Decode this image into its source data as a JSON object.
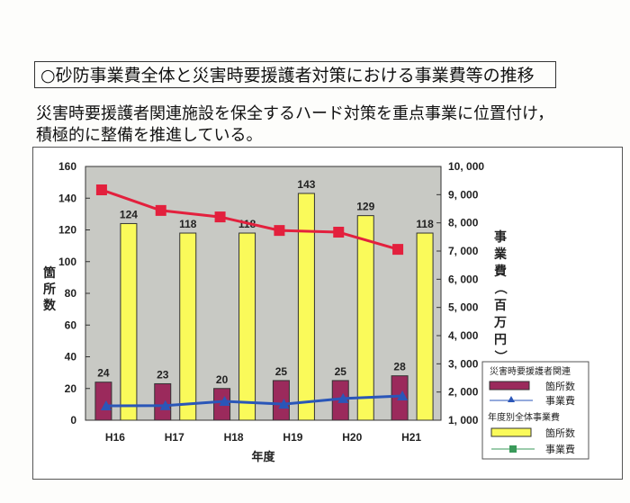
{
  "header": {
    "title": "○砂防事業費全体と災害時要援護者対策における事業費等の推移",
    "subtitle_line1": "災害時要援護者関連施設を保全するハード対策を重点事業に位置付け，",
    "subtitle_line2": "積極的に整備を推進している。"
  },
  "chart_data": {
    "type": "bar+line",
    "categories": [
      "H16",
      "H17",
      "H18",
      "H19",
      "H20",
      "H21"
    ],
    "xlabel": "年度",
    "ylabel_left": "箇所数",
    "ylabel_right": "事業費（百万円）",
    "ylim_left": [
      0,
      160
    ],
    "yticks_left": [
      "0",
      "20",
      "40",
      "60",
      "80",
      "100",
      "120",
      "140",
      "160"
    ],
    "ylim_right": [
      1000,
      10000
    ],
    "yticks_right": [
      "1, 000",
      "2, 000",
      "3, 000",
      "4, 000",
      "5, 000",
      "6, 000",
      "7, 000",
      "8, 000",
      "9, 000",
      "10, 000"
    ],
    "grid": false,
    "legend_position": "bottom-right",
    "legend": {
      "group1": "災害時要援護者関連",
      "group2": "年度別全体事業費",
      "count": "箇所数",
      "cost": "事業費"
    },
    "series": [
      {
        "name": "災害時要援護者関連 箇所数",
        "kind": "bar",
        "axis": "left",
        "color": "#9b2a5c",
        "values": [
          24,
          23,
          20,
          25,
          25,
          28
        ]
      },
      {
        "name": "年度別全体事業費 箇所数",
        "kind": "bar",
        "axis": "left",
        "color": "#fafa5a",
        "values": [
          124,
          118,
          118,
          143,
          129,
          118
        ]
      },
      {
        "name": "年度別全体事業費 事業費",
        "kind": "line",
        "axis": "right",
        "color": "#e3203d",
        "values": [
          9170,
          8440,
          8210,
          7730,
          7670,
          7060
        ]
      },
      {
        "name": "災害時要援護者関連 事業費",
        "kind": "line",
        "axis": "right",
        "color": "#2a56b8",
        "values": [
          1510,
          1520,
          1670,
          1570,
          1770,
          1860
        ]
      }
    ]
  }
}
